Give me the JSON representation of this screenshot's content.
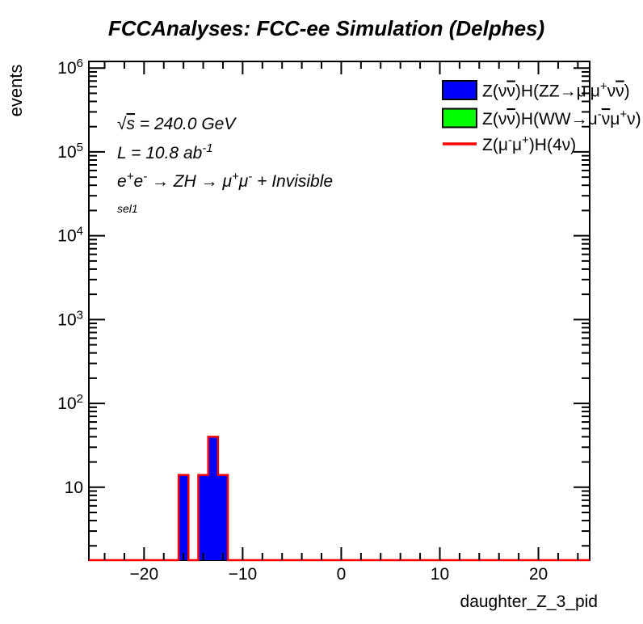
{
  "chart_data": {
    "type": "bar",
    "title": "FCCAnalyses: FCC-ee Simulation (Delphes)",
    "xlabel": "daughter_Z_3_pid",
    "ylabel": "events",
    "x_range": [
      -25.6,
      25.2
    ],
    "y_range": [
      1.35,
      1200000
    ],
    "y_scale": "log",
    "grid": false,
    "bin_width": 1,
    "bins": [
      {
        "x": -16,
        "count": 14
      },
      {
        "x": -15,
        "count": 0
      },
      {
        "x": -14,
        "count": 14
      },
      {
        "x": -13,
        "count": 40
      },
      {
        "x": -12,
        "count": 14
      }
    ],
    "x_ticks": [
      {
        "v": -20,
        "label": "−20"
      },
      {
        "v": -10,
        "label": "−10"
      },
      {
        "v": 0,
        "label": "0"
      },
      {
        "v": 10,
        "label": "10"
      },
      {
        "v": 20,
        "label": "20"
      }
    ],
    "x_minor_step": 2,
    "y_ticks": [
      {
        "v": 10,
        "segments": [
          {
            "t": "10"
          }
        ]
      },
      {
        "v": 100,
        "segments": [
          {
            "t": "10"
          },
          {
            "t": "2",
            "s": 1
          }
        ]
      },
      {
        "v": 1000,
        "segments": [
          {
            "t": "10"
          },
          {
            "t": "3",
            "s": 1
          }
        ]
      },
      {
        "v": 10000,
        "segments": [
          {
            "t": "10"
          },
          {
            "t": "4",
            "s": 1
          }
        ]
      },
      {
        "v": 100000,
        "segments": [
          {
            "t": "10"
          },
          {
            "t": "5",
            "s": 1
          }
        ]
      },
      {
        "v": 1000000,
        "segments": [
          {
            "t": "10"
          },
          {
            "t": "6",
            "s": 1
          }
        ]
      }
    ],
    "colors": {
      "hist_fill": "#0000ff",
      "hist_outline": "#ff0000",
      "legend_green": "#00ff00",
      "axis": "#000000"
    },
    "legend": {
      "position": "top-right",
      "entries": [
        {
          "marker": "box",
          "color": "#0000ff",
          "label": [
            {
              "t": "Z("
            },
            {
              "t": "ν"
            },
            {
              "t": "ν",
              "o": 1
            },
            {
              "t": ")H(ZZ"
            },
            {
              "t": "→"
            },
            {
              "t": "μ"
            },
            {
              "t": "-",
              "s": 1
            },
            {
              "t": "μ"
            },
            {
              "t": "+",
              "s": 1
            },
            {
              "t": "ν"
            },
            {
              "t": "ν",
              "o": 1
            },
            {
              "t": ")"
            }
          ]
        },
        {
          "marker": "box",
          "color": "#00ff00",
          "label": [
            {
              "t": "Z("
            },
            {
              "t": "ν"
            },
            {
              "t": "ν",
              "o": 1
            },
            {
              "t": ")H(WW"
            },
            {
              "t": "→"
            },
            {
              "t": "μ"
            },
            {
              "t": "-",
              "s": 1
            },
            {
              "t": "ν",
              "o": 1
            },
            {
              "t": "μ"
            },
            {
              "t": "+",
              "s": 1
            },
            {
              "t": "ν"
            },
            {
              "t": ")"
            }
          ]
        },
        {
          "marker": "line",
          "color": "#ff0000",
          "label": [
            {
              "t": "Z("
            },
            {
              "t": "μ"
            },
            {
              "t": "-",
              "s": 1
            },
            {
              "t": "μ"
            },
            {
              "t": "+",
              "s": 1
            },
            {
              "t": ")H(4ν)"
            }
          ]
        }
      ]
    },
    "annotations": [
      {
        "id": "sqrt-s",
        "segments": [
          {
            "t": "√"
          },
          {
            "t": "s",
            "o": 1
          },
          {
            "t": " = 240.0 GeV"
          }
        ]
      },
      {
        "id": "luminosity",
        "segments": [
          {
            "t": "L = 10.8 ab"
          },
          {
            "t": "-1",
            "s": 1
          }
        ]
      },
      {
        "id": "process",
        "segments": [
          {
            "t": "e"
          },
          {
            "t": "+",
            "s": 1
          },
          {
            "t": "e"
          },
          {
            "t": "-",
            "s": 1
          },
          {
            "t": " → ZH → "
          },
          {
            "t": "μ"
          },
          {
            "t": "+",
            "s": 1
          },
          {
            "t": "μ"
          },
          {
            "t": "-",
            "s": 1
          },
          {
            "t": " + Invisible"
          }
        ]
      },
      {
        "id": "selection",
        "segments": [
          {
            "t": "sel1"
          }
        ]
      }
    ]
  }
}
